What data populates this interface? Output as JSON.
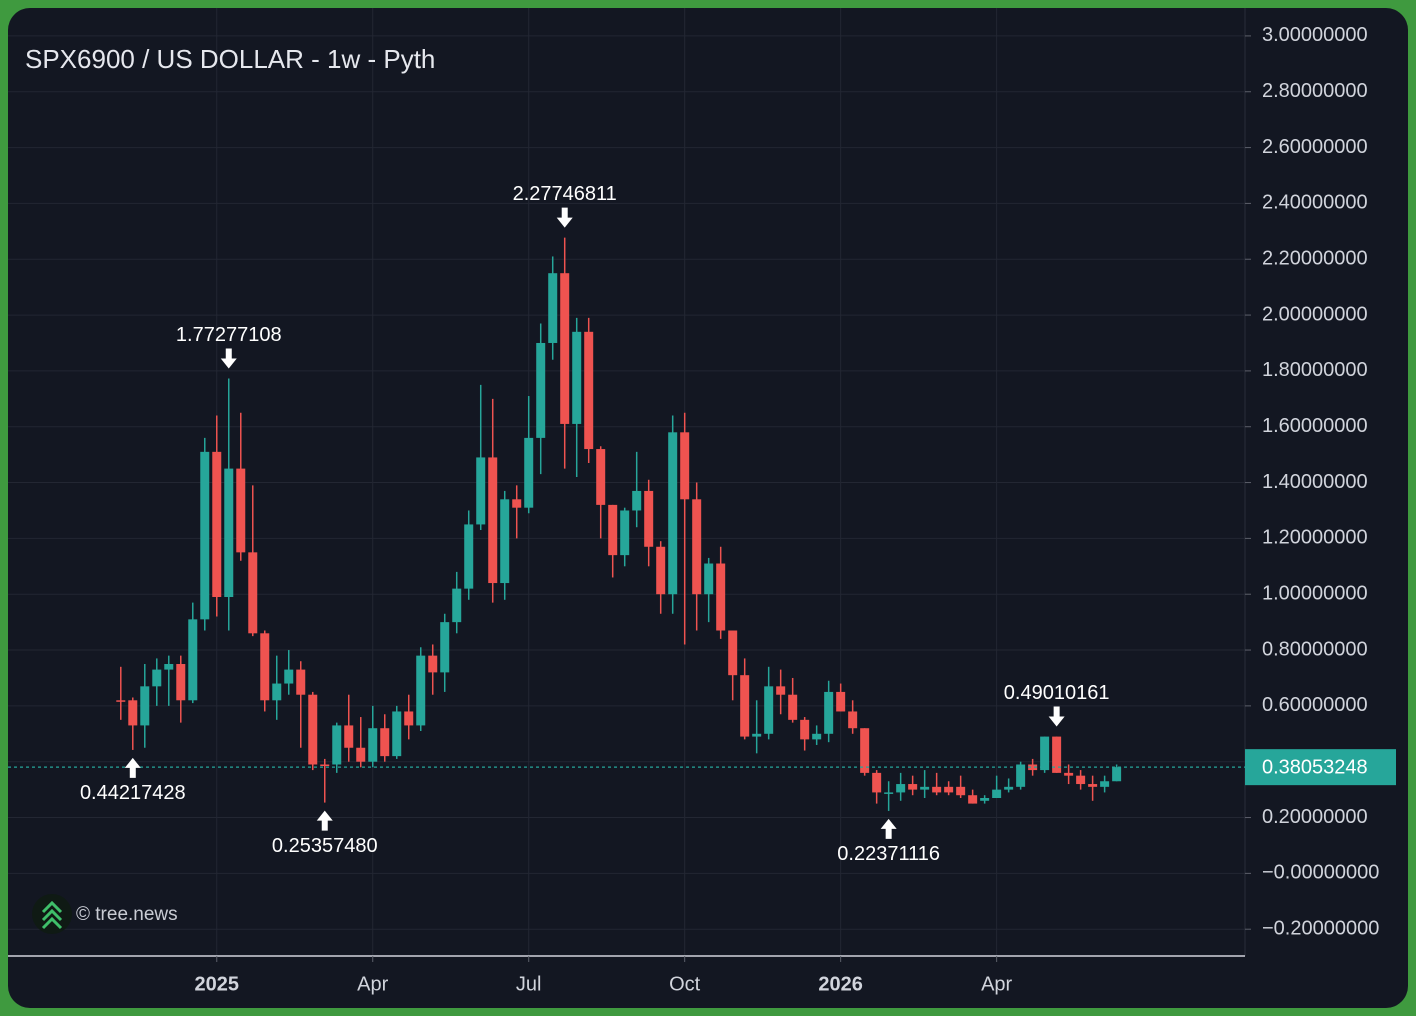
{
  "chart_data": {
    "type": "candlestick",
    "title": "SPX6900 / US DOLLAR - 1w - Pyth",
    "watermark": "© tree.news",
    "up_color": "#26a69a",
    "down_color": "#ef5350",
    "grid": true,
    "xlim": [
      -9.4,
      93.7
    ],
    "xticks": [
      {
        "value": 8,
        "label": "2025"
      },
      {
        "value": 21,
        "label": "Apr"
      },
      {
        "value": 34,
        "label": "Jul"
      },
      {
        "value": 47,
        "label": "Oct"
      },
      {
        "value": 60,
        "label": "2026"
      },
      {
        "value": 73,
        "label": "Apr"
      }
    ],
    "ylim": [
      -0.296,
      3.1
    ],
    "yticks": [
      {
        "value": 3.0,
        "label": "3.00000000"
      },
      {
        "value": 2.8,
        "label": "2.80000000"
      },
      {
        "value": 2.6,
        "label": "2.60000000"
      },
      {
        "value": 2.4,
        "label": "2.40000000"
      },
      {
        "value": 2.2,
        "label": "2.20000000"
      },
      {
        "value": 2.0,
        "label": "2.00000000"
      },
      {
        "value": 1.8,
        "label": "1.80000000"
      },
      {
        "value": 1.6,
        "label": "1.60000000"
      },
      {
        "value": 1.4,
        "label": "1.40000000"
      },
      {
        "value": 1.2,
        "label": "1.20000000"
      },
      {
        "value": 1.0,
        "label": "1.00000000"
      },
      {
        "value": 0.8,
        "label": "0.80000000"
      },
      {
        "value": 0.6,
        "label": "0.60000000"
      },
      {
        "value": 0.4,
        "label": "0.40000000"
      },
      {
        "value": 0.2,
        "label": "0.20000000"
      },
      {
        "value": 0,
        "label": "−0.00000000"
      },
      {
        "value": -0.2,
        "label": "−0.20000000"
      }
    ],
    "open": [
      0.62,
      0.62,
      0.53,
      0.67,
      0.73,
      0.75,
      0.62,
      0.91,
      1.51,
      0.99,
      1.45,
      1.15,
      0.86,
      0.62,
      0.68,
      0.73,
      0.64,
      0.39,
      0.39,
      0.53,
      0.45,
      0.4,
      0.52,
      0.42,
      0.58,
      0.53,
      0.78,
      0.72,
      0.9,
      1.02,
      1.25,
      1.49,
      1.04,
      1.34,
      1.31,
      1.56,
      1.9,
      2.15,
      1.61,
      1.94,
      1.52,
      1.32,
      1.14,
      1.3,
      1.37,
      1.17,
      1.0,
      1.58,
      1.34,
      1.0,
      1.11,
      0.87,
      0.71,
      0.49,
      0.5,
      0.67,
      0.64,
      0.55,
      0.48,
      0.5,
      0.65,
      0.58,
      0.52,
      0.36,
      0.29,
      0.29,
      0.32,
      0.3,
      0.31,
      0.31,
      0.31,
      0.28,
      0.26,
      0.27,
      0.3,
      0.31,
      0.39,
      0.37,
      0.49,
      0.36,
      0.35,
      0.32,
      0.31,
      0.33
    ],
    "high": [
      0.74,
      0.63,
      0.75,
      0.77,
      0.78,
      0.78,
      0.97,
      1.56,
      1.64,
      1.77277108,
      1.65,
      1.39,
      0.87,
      0.78,
      0.8,
      0.76,
      0.65,
      0.41,
      0.54,
      0.64,
      0.56,
      0.6,
      0.57,
      0.6,
      0.64,
      0.81,
      0.82,
      0.93,
      1.08,
      1.3,
      1.75,
      1.7,
      1.37,
      1.39,
      1.71,
      1.97,
      2.21,
      2.27746811,
      1.99,
      1.99,
      1.53,
      1.32,
      1.31,
      1.51,
      1.41,
      1.19,
      1.64,
      1.65,
      1.4,
      1.13,
      1.17,
      0.87,
      0.77,
      0.62,
      0.74,
      0.73,
      0.7,
      0.56,
      0.53,
      0.69,
      0.68,
      0.62,
      0.52,
      0.37,
      0.33,
      0.36,
      0.35,
      0.37,
      0.36,
      0.33,
      0.35,
      0.3,
      0.28,
      0.35,
      0.34,
      0.4,
      0.41,
      0.49,
      0.49010161,
      0.39,
      0.37,
      0.35,
      0.35,
      0.39
    ],
    "low": [
      0.55,
      0.44217428,
      0.45,
      0.6,
      0.6,
      0.54,
      0.61,
      0.87,
      0.92,
      0.87,
      1.12,
      0.85,
      0.58,
      0.55,
      0.64,
      0.45,
      0.37,
      0.2535748,
      0.36,
      0.4,
      0.38,
      0.38,
      0.4,
      0.41,
      0.48,
      0.51,
      0.64,
      0.65,
      0.86,
      0.98,
      1.23,
      0.97,
      0.98,
      1.2,
      1.29,
      1.43,
      1.84,
      1.45,
      1.42,
      1.47,
      1.2,
      1.06,
      1.1,
      1.24,
      1.1,
      0.93,
      0.93,
      0.82,
      0.87,
      0.9,
      0.84,
      0.62,
      0.48,
      0.43,
      0.48,
      0.57,
      0.54,
      0.44,
      0.46,
      0.47,
      0.58,
      0.5,
      0.35,
      0.25,
      0.22371116,
      0.26,
      0.28,
      0.27,
      0.28,
      0.28,
      0.27,
      0.25,
      0.25,
      0.27,
      0.29,
      0.3,
      0.35,
      0.36,
      0.36,
      0.32,
      0.3,
      0.26,
      0.29,
      0.33
    ],
    "close": [
      0.615,
      0.53,
      0.67,
      0.73,
      0.75,
      0.62,
      0.91,
      1.51,
      0.99,
      1.45,
      1.15,
      0.86,
      0.62,
      0.68,
      0.73,
      0.64,
      0.39,
      0.385,
      0.53,
      0.45,
      0.4,
      0.52,
      0.42,
      0.58,
      0.53,
      0.78,
      0.72,
      0.9,
      1.02,
      1.25,
      1.49,
      1.04,
      1.34,
      1.31,
      1.56,
      1.9,
      2.15,
      1.61,
      1.94,
      1.52,
      1.32,
      1.14,
      1.3,
      1.37,
      1.17,
      1.0,
      1.58,
      1.34,
      1.0,
      1.11,
      0.87,
      0.71,
      0.49,
      0.5,
      0.67,
      0.64,
      0.55,
      0.48,
      0.5,
      0.65,
      0.58,
      0.52,
      0.36,
      0.29,
      0.29,
      0.32,
      0.3,
      0.31,
      0.29,
      0.29,
      0.28,
      0.25,
      0.27,
      0.3,
      0.31,
      0.39,
      0.37,
      0.49,
      0.36,
      0.35,
      0.32,
      0.31,
      0.33,
      0.38053248
    ],
    "annotations": [
      {
        "label": "0.44217428",
        "value": 0.44217428
      },
      {
        "label": "1.77277108",
        "value": 1.77277108
      },
      {
        "label": "0.25357480",
        "value": 0.2535748
      },
      {
        "label": "2.27746811",
        "value": 2.27746811
      },
      {
        "label": "0.22371116",
        "value": 0.22371116
      },
      {
        "label": "0.49010161",
        "value": 0.49010161
      }
    ]
  }
}
